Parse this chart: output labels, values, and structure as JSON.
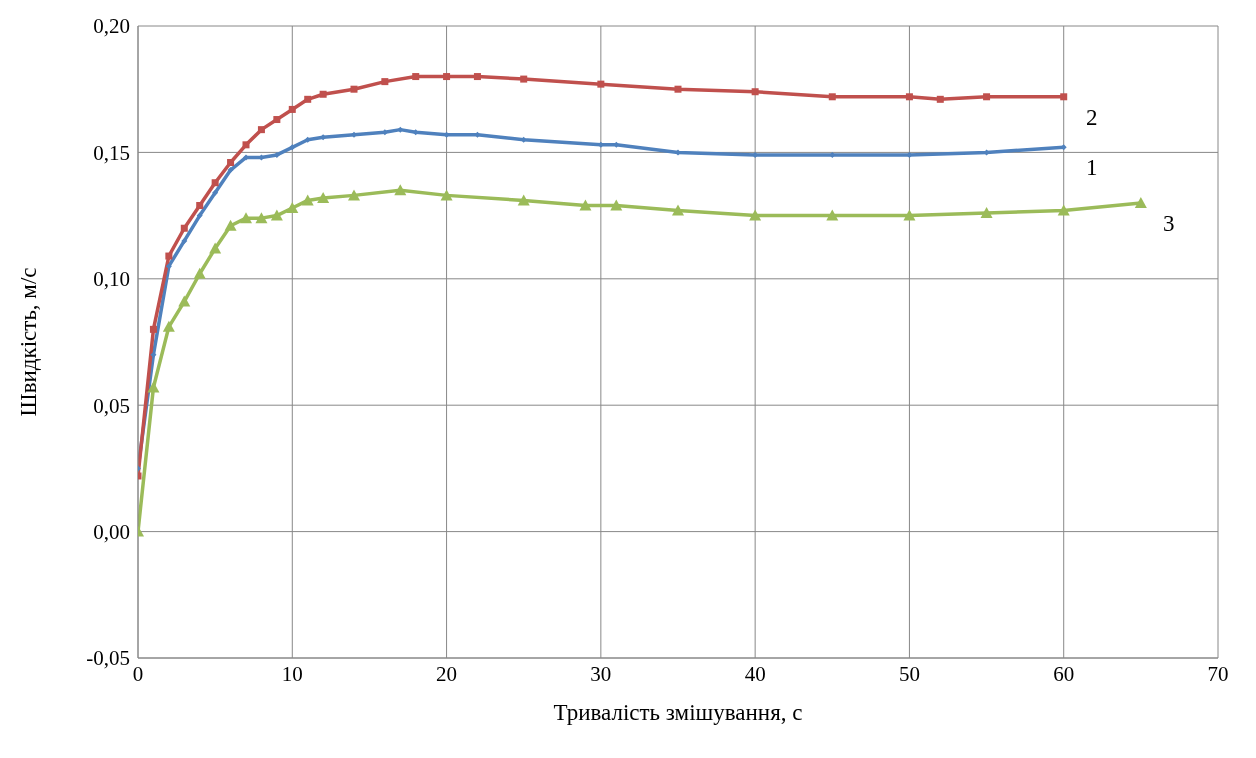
{
  "chart_data": {
    "type": "line",
    "xlabel": "Тривалість змішування, с",
    "ylabel": "Швидкість, м/с",
    "xlim": [
      0,
      70
    ],
    "xticks": [
      0,
      10,
      20,
      30,
      40,
      50,
      60,
      70
    ],
    "ylim": [
      -0.05,
      0.2
    ],
    "yticks": [
      {
        "value": -0.05,
        "label": "-0,05"
      },
      {
        "value": 0,
        "label": "0,00"
      },
      {
        "value": 0.05,
        "label": "0,05"
      },
      {
        "value": 0.1,
        "label": "0,10"
      },
      {
        "value": 0.15,
        "label": "0,15"
      },
      {
        "value": 0.2,
        "label": "0,20"
      }
    ],
    "grid": true,
    "series": [
      {
        "name": "1",
        "color": "#4f81bd",
        "marker": "diamond",
        "x": [
          0,
          1,
          2,
          3,
          4,
          5,
          6,
          7,
          8,
          9,
          10,
          11,
          12,
          14,
          16,
          17,
          18,
          20,
          22,
          25,
          30,
          31,
          35,
          40,
          45,
          50,
          55,
          60
        ],
        "values": [
          0.025,
          0.07,
          0.105,
          0.115,
          0.125,
          0.134,
          0.143,
          0.148,
          0.148,
          0.149,
          0.152,
          0.155,
          0.156,
          0.157,
          0.158,
          0.159,
          0.158,
          0.157,
          0.157,
          0.155,
          0.153,
          0.153,
          0.15,
          0.149,
          0.149,
          0.149,
          0.15,
          0.152
        ]
      },
      {
        "name": "2",
        "color": "#c0504d",
        "marker": "square",
        "x": [
          0,
          1,
          2,
          3,
          4,
          5,
          6,
          7,
          8,
          9,
          10,
          11,
          12,
          14,
          16,
          18,
          20,
          22,
          25,
          30,
          35,
          40,
          45,
          50,
          52,
          55,
          60
        ],
        "values": [
          0.022,
          0.08,
          0.109,
          0.12,
          0.129,
          0.138,
          0.146,
          0.153,
          0.159,
          0.163,
          0.167,
          0.171,
          0.173,
          0.175,
          0.178,
          0.18,
          0.18,
          0.18,
          0.179,
          0.177,
          0.175,
          0.174,
          0.172,
          0.172,
          0.171,
          0.172,
          0.172
        ]
      },
      {
        "name": "3",
        "color": "#9bbb59",
        "marker": "triangle",
        "x": [
          0,
          1,
          2,
          3,
          4,
          5,
          6,
          7,
          8,
          9,
          10,
          11,
          12,
          14,
          17,
          20,
          25,
          29,
          31,
          35,
          40,
          45,
          50,
          55,
          60,
          65
        ],
        "values": [
          0,
          0.057,
          0.081,
          0.091,
          0.102,
          0.112,
          0.121,
          0.124,
          0.124,
          0.125,
          0.128,
          0.131,
          0.132,
          0.133,
          0.135,
          0.133,
          0.131,
          0.129,
          0.129,
          0.127,
          0.125,
          0.125,
          0.125,
          0.126,
          0.127,
          0.13
        ]
      }
    ]
  }
}
